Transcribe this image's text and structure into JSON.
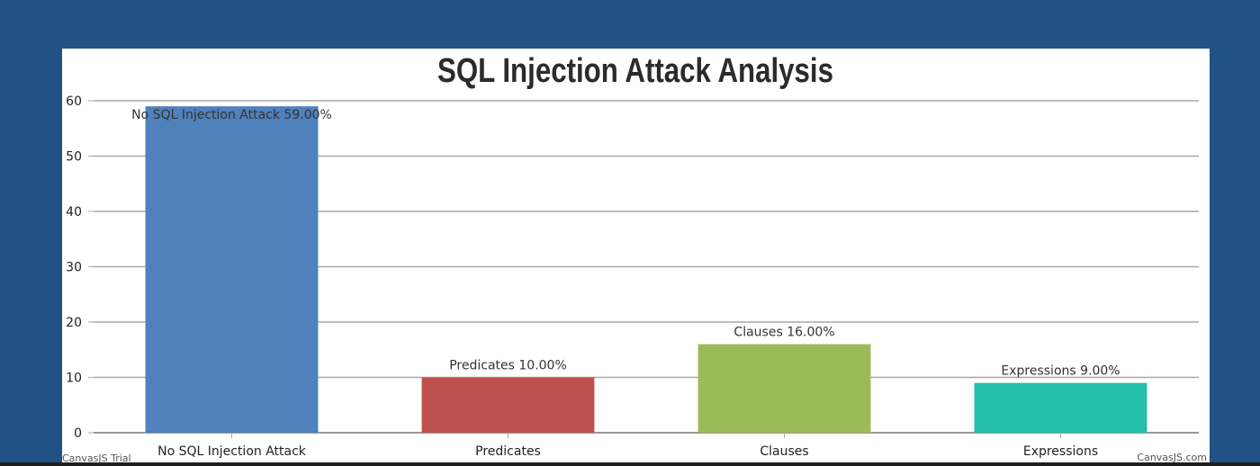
{
  "chart_data": {
    "type": "bar",
    "title": "SQL Injection Attack Analysis",
    "categories": [
      "No SQL Injection Attack",
      "Predicates",
      "Clauses",
      "Expressions"
    ],
    "values": [
      59,
      10,
      16,
      9
    ],
    "data_labels": [
      "No SQL Injection Attack 59.00%",
      "Predicates 10.00%",
      "Clauses 16.00%",
      "Expressions 9.00%"
    ],
    "colors": [
      "#4f81bc",
      "#c0504e",
      "#9bbb58",
      "#23bfaa"
    ],
    "ylim": [
      0,
      60
    ],
    "yticks": [
      0,
      10,
      20,
      30,
      40,
      50,
      60
    ],
    "grid": true,
    "xlabel": "",
    "ylabel": ""
  },
  "credits": {
    "trial": "CanvasJS Trial",
    "site": "CanvasJS.com"
  }
}
